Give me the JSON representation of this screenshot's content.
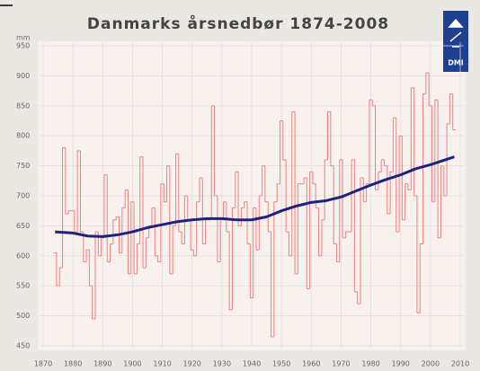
{
  "chart_data": {
    "type": "step",
    "title": "Danmarks årsnedbør 1874-2008",
    "y_label": "mm",
    "logo_text": "DMI",
    "xlim": [
      1870,
      2010
    ],
    "xticks": [
      1870,
      1880,
      1890,
      1900,
      1910,
      1920,
      1930,
      1940,
      1950,
      1960,
      1970,
      1980,
      1990,
      2000,
      2010
    ],
    "ylim": [
      450,
      950
    ],
    "yticks": [
      450,
      500,
      550,
      600,
      650,
      700,
      750,
      800,
      850,
      900,
      950
    ],
    "grid": true,
    "series": [
      {
        "color": "#f08080",
        "x": [
          1874,
          1875,
          1876,
          1877,
          1878,
          1879,
          1880,
          1881,
          1882,
          1883,
          1884,
          1885,
          1886,
          1887,
          1888,
          1889,
          1890,
          1891,
          1892,
          1893,
          1894,
          1895,
          1896,
          1897,
          1898,
          1899,
          1900,
          1901,
          1902,
          1903,
          1904,
          1905,
          1906,
          1907,
          1908,
          1909,
          1910,
          1911,
          1912,
          1913,
          1914,
          1915,
          1916,
          1917,
          1918,
          1919,
          1920,
          1921,
          1922,
          1923,
          1924,
          1925,
          1926,
          1927,
          1928,
          1929,
          1930,
          1931,
          1932,
          1933,
          1934,
          1935,
          1936,
          1937,
          1938,
          1939,
          1940,
          1941,
          1942,
          1943,
          1944,
          1945,
          1946,
          1947,
          1948,
          1949,
          1950,
          1951,
          1952,
          1953,
          1954,
          1955,
          1956,
          1957,
          1958,
          1959,
          1960,
          1961,
          1962,
          1963,
          1964,
          1965,
          1966,
          1967,
          1968,
          1969,
          1970,
          1971,
          1972,
          1973,
          1974,
          1975,
          1976,
          1977,
          1978,
          1979,
          1980,
          1981,
          1982,
          1983,
          1984,
          1985,
          1986,
          1987,
          1988,
          1989,
          1990,
          1991,
          1992,
          1993,
          1994,
          1995,
          1996,
          1997,
          1998,
          1999,
          2000,
          2001,
          2002,
          2003,
          2004,
          2005,
          2006,
          2007,
          2008
        ],
        "values": [
          605,
          550,
          580,
          780,
          670,
          675,
          675,
          640,
          775,
          640,
          590,
          610,
          550,
          495,
          640,
          600,
          630,
          735,
          590,
          620,
          660,
          665,
          605,
          680,
          710,
          570,
          690,
          570,
          620,
          765,
          580,
          630,
          650,
          680,
          600,
          590,
          720,
          690,
          750,
          570,
          650,
          770,
          640,
          620,
          700,
          660,
          610,
          600,
          690,
          730,
          620,
          660,
          660,
          850,
          700,
          590,
          660,
          690,
          640,
          510,
          680,
          740,
          650,
          680,
          690,
          620,
          530,
          680,
          610,
          700,
          750,
          690,
          640,
          465,
          690,
          720,
          825,
          760,
          640,
          600,
          840,
          570,
          720,
          720,
          730,
          545,
          740,
          720,
          680,
          600,
          660,
          760,
          840,
          750,
          620,
          590,
          760,
          630,
          640,
          640,
          760,
          540,
          520,
          730,
          690,
          720,
          860,
          850,
          710,
          740,
          760,
          750,
          670,
          740,
          830,
          640,
          800,
          660,
          720,
          710,
          880,
          700,
          505,
          620,
          870,
          905,
          850,
          690,
          860,
          630,
          750,
          700,
          820,
          870,
          810
        ]
      },
      {
        "color": "#1a237e",
        "x": [
          1874,
          1880,
          1885,
          1890,
          1895,
          1900,
          1905,
          1910,
          1915,
          1920,
          1925,
          1930,
          1935,
          1940,
          1945,
          1950,
          1955,
          1960,
          1965,
          1970,
          1975,
          1980,
          1985,
          1990,
          1995,
          2000,
          2005,
          2008
        ],
        "values": [
          640,
          638,
          633,
          632,
          635,
          640,
          647,
          652,
          657,
          660,
          662,
          662,
          660,
          660,
          665,
          675,
          683,
          689,
          692,
          698,
          708,
          718,
          727,
          735,
          745,
          752,
          760,
          765
        ]
      }
    ]
  }
}
